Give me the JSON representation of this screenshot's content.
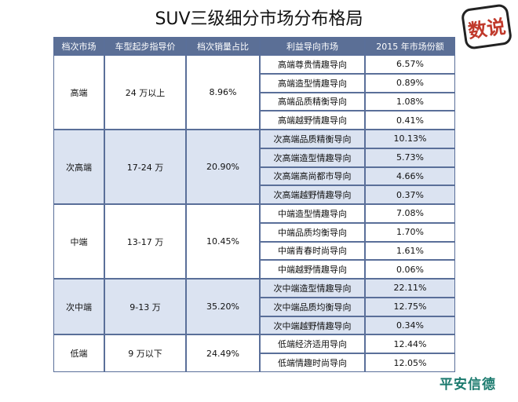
{
  "header": {
    "title": "SUV三级细分市场分布格局",
    "logo": "数说"
  },
  "table": {
    "columns": [
      "档次市场",
      "车型起步指导价",
      "档次销量占比",
      "利益导向市场",
      "2015 年市场份额"
    ],
    "groups": [
      {
        "tier": "高端",
        "price": "24 万以上",
        "share": "8.96%",
        "segments": [
          {
            "name": "高端尊贵情趣导向",
            "share": "6.57%"
          },
          {
            "name": "高端造型情趣导向",
            "share": "0.89%"
          },
          {
            "name": "高端品质精衡导向",
            "share": "1.08%"
          },
          {
            "name": "高端越野情趣导向",
            "share": "0.41%"
          }
        ]
      },
      {
        "tier": "次高端",
        "price": "17-24 万",
        "share": "20.90%",
        "segments": [
          {
            "name": "次高端品质精衡导向",
            "share": "10.13%"
          },
          {
            "name": "次高端造型情趣导向",
            "share": "5.73%"
          },
          {
            "name": "次高端高尚都市导向",
            "share": "4.66%"
          },
          {
            "name": "次高端越野情趣导向",
            "share": "0.37%"
          }
        ]
      },
      {
        "tier": "中端",
        "price": "13-17 万",
        "share": "10.45%",
        "segments": [
          {
            "name": "中端造型情趣导向",
            "share": "7.08%"
          },
          {
            "name": "中端品质均衡导向",
            "share": "1.70%"
          },
          {
            "name": "中端青春时尚导向",
            "share": "1.61%"
          },
          {
            "name": "中端越野情趣导向",
            "share": "0.06%"
          }
        ]
      },
      {
        "tier": "次中端",
        "price": "9-13 万",
        "share": "35.20%",
        "segments": [
          {
            "name": "次中端造型情趣导向",
            "share": "22.11%"
          },
          {
            "name": "次中端品质均衡导向",
            "share": "12.75%"
          },
          {
            "name": "次中端越野情趣导向",
            "share": "0.34%"
          }
        ]
      },
      {
        "tier": "低端",
        "price": "9 万以下",
        "share": "24.49%",
        "segments": [
          {
            "name": "低端经济适用导向",
            "share": "12.44%"
          },
          {
            "name": "低端情趣时尚导向",
            "share": "12.05%"
          }
        ]
      }
    ]
  },
  "footer": {
    "brand": "平安信德"
  }
}
